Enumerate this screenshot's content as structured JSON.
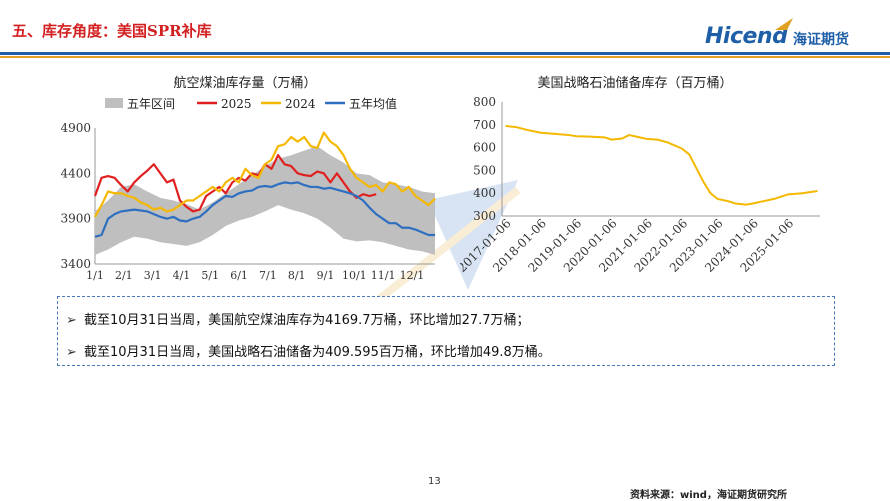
{
  "header": {
    "title": "五、库存角度：美国SPR补库",
    "logo_en": "Hicend",
    "logo_cn": "海证期货",
    "accent_color": "#1f5fa8",
    "title_color": "#d32020"
  },
  "charts": {
    "left_title": "航空煤油库存量（万桶）",
    "right_title": "美国战略石油储备库存（百万桶）"
  },
  "chart_data": [
    {
      "type": "line",
      "title": "航空煤油库存量（万桶）",
      "x_tick_labels": [
        "1/1",
        "2/1",
        "3/1",
        "4/1",
        "5/1",
        "6/1",
        "7/1",
        "8/1",
        "9/1",
        "10/1",
        "11/1",
        "12/1"
      ],
      "ylim": [
        3400,
        4900
      ],
      "y_ticks": [
        3400,
        3900,
        4400,
        4900
      ],
      "x_range": [
        0,
        52
      ],
      "legend": [
        "五年区间",
        "2025",
        "2024",
        "五年均值"
      ],
      "legend_placement": "top",
      "band": {
        "name": "五年区间",
        "color": "#bfbfbf",
        "x": [
          0,
          2,
          4,
          6,
          8,
          10,
          12,
          14,
          16,
          18,
          20,
          22,
          24,
          26,
          28,
          30,
          32,
          34,
          36,
          38,
          40,
          42,
          44,
          46,
          48,
          50,
          52
        ],
        "upper": [
          3980,
          4100,
          4250,
          4280,
          4200,
          4130,
          4100,
          4060,
          4000,
          4080,
          4180,
          4280,
          4380,
          4480,
          4560,
          4600,
          4650,
          4700,
          4600,
          4520,
          4400,
          4380,
          4300,
          4280,
          4250,
          4200,
          4180
        ],
        "lower": [
          3500,
          3560,
          3640,
          3700,
          3680,
          3640,
          3620,
          3600,
          3640,
          3720,
          3820,
          3880,
          3920,
          3980,
          4050,
          4000,
          3960,
          3900,
          3800,
          3680,
          3650,
          3660,
          3640,
          3600,
          3560,
          3540,
          3500
        ]
      },
      "series": [
        {
          "name": "2025",
          "color": "#e02020",
          "x": [
            0,
            1,
            2,
            3,
            4,
            5,
            6,
            7,
            8,
            9,
            10,
            11,
            12,
            13,
            14,
            15,
            16,
            17,
            18,
            19,
            20,
            21,
            22,
            23,
            24,
            25,
            26,
            27,
            28,
            29,
            30,
            31,
            32,
            33,
            34,
            35,
            36,
            37,
            38,
            39,
            40,
            41,
            42,
            43
          ],
          "values": [
            4150,
            4350,
            4370,
            4350,
            4270,
            4200,
            4300,
            4370,
            4430,
            4500,
            4400,
            4300,
            4330,
            4100,
            4030,
            3980,
            4000,
            4150,
            4200,
            4250,
            4180,
            4300,
            4350,
            4320,
            4400,
            4380,
            4500,
            4450,
            4600,
            4500,
            4480,
            4400,
            4380,
            4370,
            4420,
            4400,
            4300,
            4400,
            4300,
            4200,
            4130,
            4170,
            4150,
            4170
          ]
        },
        {
          "name": "2024",
          "color": "#f5b800",
          "x": [
            0,
            1,
            2,
            3,
            4,
            5,
            6,
            7,
            8,
            9,
            10,
            11,
            12,
            13,
            14,
            15,
            16,
            17,
            18,
            19,
            20,
            21,
            22,
            23,
            24,
            25,
            26,
            27,
            28,
            29,
            30,
            31,
            32,
            33,
            34,
            35,
            36,
            37,
            38,
            39,
            40,
            41,
            42,
            43,
            44,
            45,
            46,
            47,
            48,
            49,
            50,
            51,
            52
          ],
          "values": [
            3920,
            4050,
            4200,
            4180,
            4180,
            4150,
            4130,
            4080,
            4050,
            4000,
            4020,
            3980,
            4000,
            4050,
            4100,
            4100,
            4150,
            4200,
            4250,
            4200,
            4300,
            4350,
            4300,
            4450,
            4380,
            4350,
            4500,
            4550,
            4700,
            4720,
            4800,
            4750,
            4800,
            4700,
            4680,
            4850,
            4750,
            4700,
            4600,
            4450,
            4350,
            4300,
            4250,
            4270,
            4200,
            4300,
            4280,
            4200,
            4250,
            4150,
            4100,
            4050,
            4120
          ]
        },
        {
          "name": "五年均值",
          "color": "#2e6fc0",
          "x": [
            0,
            1,
            2,
            3,
            4,
            5,
            6,
            7,
            8,
            9,
            10,
            11,
            12,
            13,
            14,
            15,
            16,
            17,
            18,
            19,
            20,
            21,
            22,
            23,
            24,
            25,
            26,
            27,
            28,
            29,
            30,
            31,
            32,
            33,
            34,
            35,
            36,
            37,
            38,
            39,
            40,
            41,
            42,
            43,
            44,
            45,
            46,
            47,
            48,
            49,
            50,
            51,
            52
          ],
          "values": [
            3700,
            3720,
            3900,
            3950,
            3980,
            3990,
            4000,
            3990,
            3980,
            3950,
            3920,
            3900,
            3920,
            3880,
            3870,
            3900,
            3920,
            3980,
            4050,
            4100,
            4150,
            4140,
            4180,
            4200,
            4210,
            4250,
            4260,
            4250,
            4280,
            4300,
            4290,
            4300,
            4270,
            4250,
            4250,
            4230,
            4240,
            4220,
            4200,
            4180,
            4150,
            4100,
            4020,
            3950,
            3900,
            3850,
            3850,
            3800,
            3800,
            3780,
            3750,
            3720,
            3720
          ]
        }
      ]
    },
    {
      "type": "line",
      "title": "美国战略石油储备库存（百万桶）",
      "x_tick_labels": [
        "2017-01-06",
        "2018-01-06",
        "2019-01-06",
        "2020-01-06",
        "2021-01-06",
        "2022-01-06",
        "2023-01-06",
        "2024-01-06",
        "2025-01-06"
      ],
      "ylim": [
        300,
        800
      ],
      "y_ticks": [
        300,
        400,
        500,
        600,
        700,
        800
      ],
      "series": [
        {
          "name": "SPR",
          "color": "#f5b800",
          "x": [
            2017.0,
            2017.3,
            2017.6,
            2018.0,
            2018.4,
            2018.8,
            2019.0,
            2019.4,
            2019.8,
            2020.0,
            2020.3,
            2020.5,
            2020.8,
            2021.0,
            2021.3,
            2021.6,
            2022.0,
            2022.2,
            2022.4,
            2022.6,
            2022.8,
            2023.0,
            2023.3,
            2023.5,
            2023.8,
            2024.0,
            2024.3,
            2024.6,
            2025.0,
            2025.4,
            2025.83
          ],
          "values": [
            695,
            690,
            678,
            665,
            660,
            655,
            650,
            648,
            645,
            635,
            640,
            655,
            645,
            638,
            635,
            622,
            595,
            570,
            510,
            450,
            400,
            375,
            365,
            355,
            350,
            355,
            365,
            375,
            395,
            400,
            409.6
          ]
        }
      ]
    }
  ],
  "bullets": [
    "截至10月31日当周，美国航空煤油库存为4169.7万桶，环比增加27.7万桶；",
    "截至10月31日当周，美国战略石油储备为409.595百万桶，环比增加49.8万桶。"
  ],
  "footer": {
    "page_number": "13",
    "source": "资料来源：wind，海证期货研究所"
  }
}
